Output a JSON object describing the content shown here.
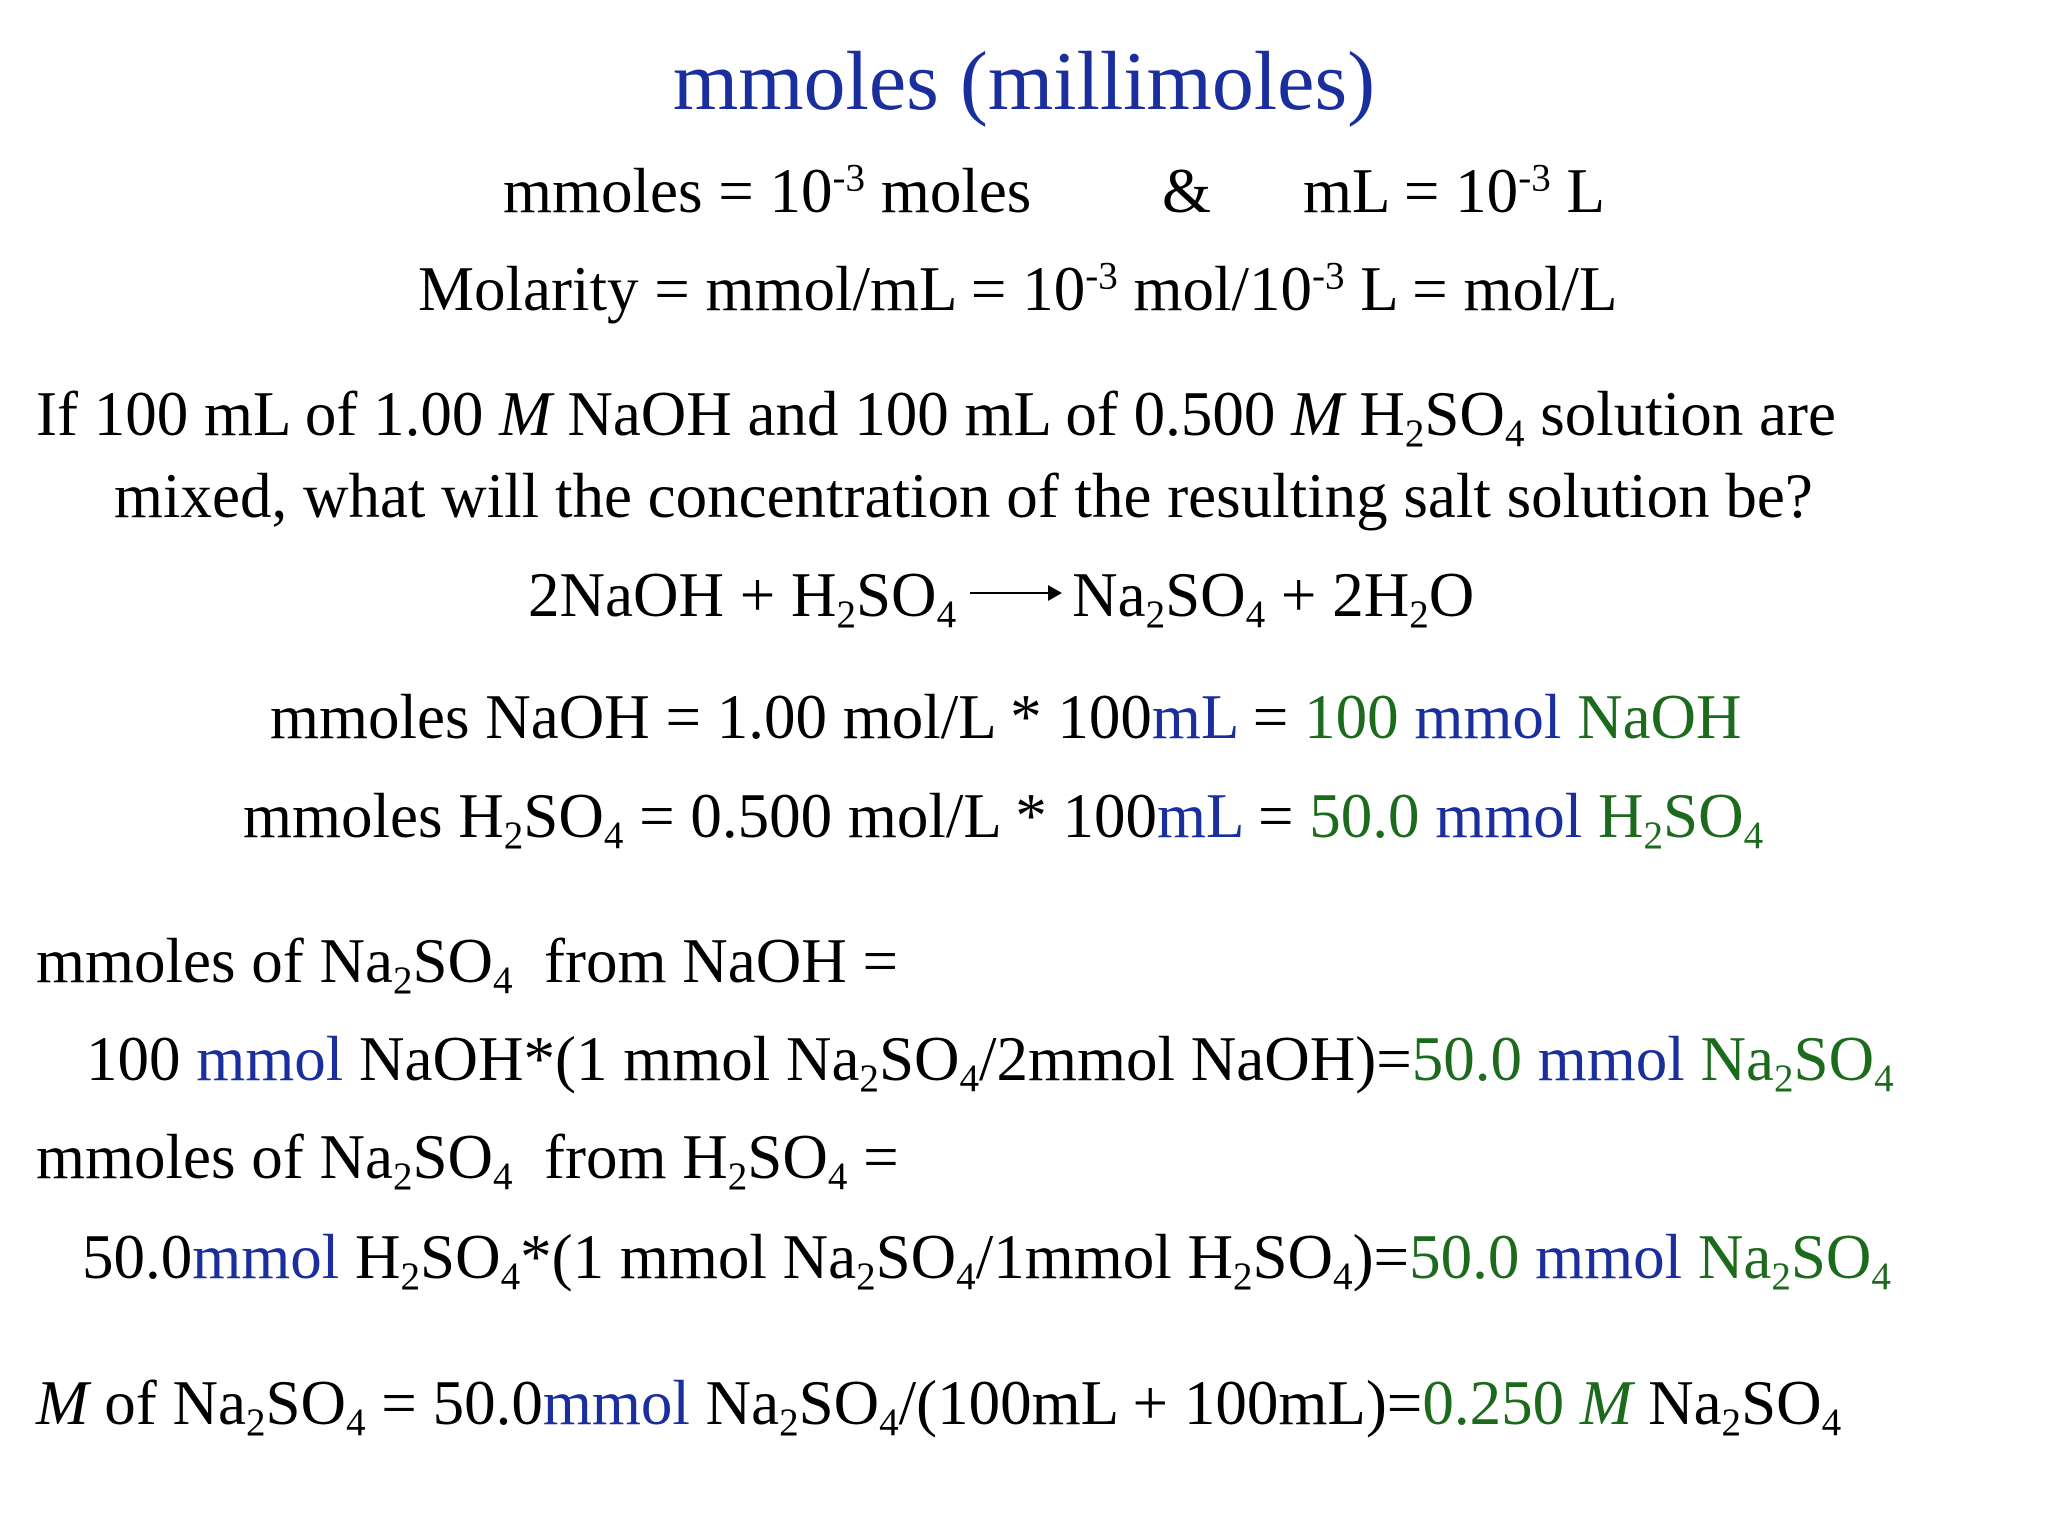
{
  "title": "mmoles (millimoles)",
  "def": {
    "l1_a": "mmoles = 10",
    "l1_a_exp": "-3",
    "l1_b": " moles",
    "amp": "&",
    "l1_c": "mL = 10",
    "l1_c_exp": "-3",
    "l1_d": " L",
    "l2_a": "Molarity = mmol/mL = 10",
    "l2_exp1": "-3",
    "l2_b": " mol/10",
    "l2_exp2": "-3",
    "l2_c": " L = mol/L"
  },
  "question": {
    "p1": "If 100 mL of 1.00 ",
    "M1": "M",
    "p2": " NaOH and 100 mL of 0.500 ",
    "M2": "M",
    "p3": " H",
    "s2": "2",
    "p4": "SO",
    "s4": "4",
    "p5": " solution are",
    "line2": "mixed, what will the concentration of the resulting salt solution be?"
  },
  "reaction": {
    "r1": "2NaOH + H",
    "s2a": "2",
    "r2": "SO",
    "s4a": "4",
    "r3": "Na",
    "s2b": "2",
    "r4": "SO",
    "s4b": "4",
    "r5": " + 2H",
    "s2c": "2",
    "r6": "O"
  },
  "calc1": {
    "a": "mmoles NaOH = 1.00 mol/L * 100",
    "mL": "mL",
    "eq": " = ",
    "n": "100 ",
    "mmol": "mmol",
    "sp": " NaOH"
  },
  "calc2": {
    "a": "mmoles H",
    "s2": "2",
    "b": "SO",
    "s4": "4",
    "c": " = 0.500 mol/L * 100",
    "mL": "mL",
    "eq": " = ",
    "n": "50.0 ",
    "mmol": "mmol",
    "sp1": " H",
    "s2b": "2",
    "sp2": "SO",
    "s4b": "4"
  },
  "from_naoh": {
    "head_a": "mmoles of Na",
    "hs2": "2",
    "head_b": "SO",
    "hs4": "4",
    "head_c": "  from NaOH =",
    "l_a": "100 ",
    "l_mmol": "mmol",
    "l_b": " NaOH*(1 mmol Na",
    "ls2": "2",
    "l_c": "SO",
    "ls4": "4",
    "l_d": "/2mmol NaOH)=",
    "r_n": "50.0 ",
    "r_mmol": "mmol",
    "r_a": " Na",
    "rs2": "2",
    "r_b": "SO",
    "rs4": "4"
  },
  "from_h2so4": {
    "head_a": "mmoles of Na",
    "hs2": "2",
    "head_b": "SO",
    "hs4": "4",
    "head_c": "  from H",
    "hs2b": "2",
    "head_d": "SO",
    "hs4b": "4",
    "head_e": " =",
    "l_a": "50.0",
    "l_mmol": "mmol",
    "l_b": " H",
    "ls2": "2",
    "l_c": "SO",
    "ls4": "4",
    "l_d": "*(1 mmol Na",
    "ls2b": "2",
    "l_e": "SO",
    "ls4b": "4",
    "l_f": "/1mmol H",
    "ls2c": "2",
    "l_g": "SO",
    "ls4c": "4",
    "l_h": ")=",
    "r_n": "50.0 ",
    "r_mmol": "mmol",
    "r_a": " Na",
    "rs2": "2",
    "r_b": "SO",
    "rs4": "4"
  },
  "final": {
    "M": "M",
    "a": " of Na",
    "s2": "2",
    "b": "SO",
    "s4": "4",
    "c": " = 50.0",
    "mmol": "mmol",
    "d": " Na",
    "s2b": "2",
    "e": "SO",
    "s4b": "4",
    "f": "/(100mL + 100mL)=",
    "ans": "0.250 ",
    "ansM": "M",
    "g": " Na",
    "s2c": "2",
    "h": "SO",
    "s4c": "4"
  },
  "colors": {
    "title": "#1a2e9e",
    "unit": "#1a2e9e",
    "result": "#1c6a1c",
    "text": "#000000"
  }
}
